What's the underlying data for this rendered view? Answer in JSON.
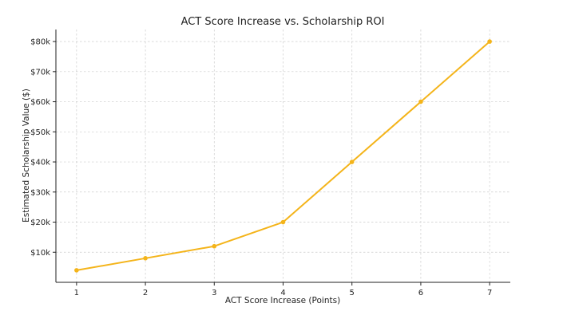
{
  "chart_data": {
    "type": "line",
    "title": "ACT Score Increase vs. Scholarship ROI",
    "xlabel": "ACT Score Increase (Points)",
    "ylabel": "Estimated Scholarship Value ($)",
    "x": [
      1,
      2,
      3,
      4,
      5,
      6,
      7
    ],
    "series": [
      {
        "values": [
          4000,
          8000,
          12000,
          20000,
          40000,
          60000,
          80000
        ],
        "color": "#f4b41a"
      }
    ],
    "x_ticks": [
      1,
      2,
      3,
      4,
      5,
      6,
      7
    ],
    "x_tick_labels": [
      "1",
      "2",
      "3",
      "4",
      "5",
      "6",
      "7"
    ],
    "y_ticks": [
      10000,
      20000,
      30000,
      40000,
      50000,
      60000,
      70000,
      80000
    ],
    "y_tick_labels": [
      "$10k",
      "$20k",
      "$30k",
      "$40k",
      "$50k",
      "$60k",
      "$70k",
      "$80k"
    ],
    "xlim": [
      0.7,
      7.3
    ],
    "ylim": [
      0,
      84000
    ],
    "grid": true
  }
}
